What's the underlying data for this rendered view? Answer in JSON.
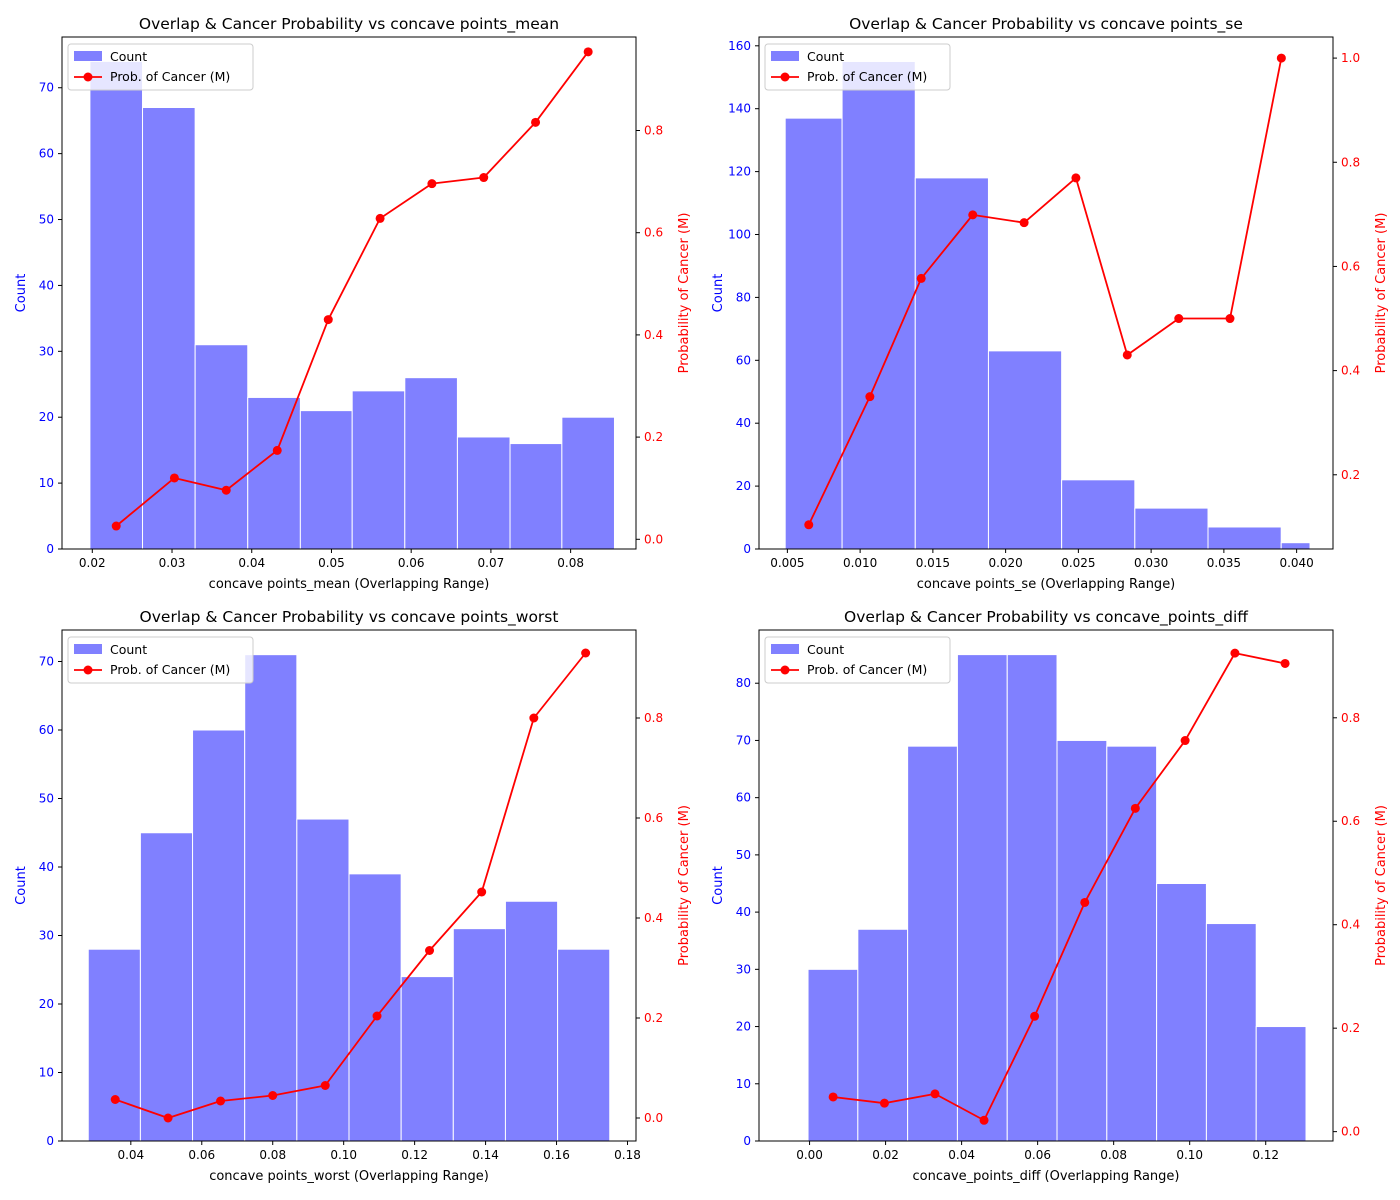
{
  "colors": {
    "bar_fill": "#8080ff",
    "bar_edge": "#ffffff",
    "line": "#ff0000",
    "left_axis_text": "#0000ff",
    "right_axis_text": "#ff0000",
    "axes": "#000000"
  },
  "chart_data": [
    {
      "type": "bar",
      "title": "Overlap & Cancer Probability vs concave points_mean",
      "xlabel": "concave points_mean (Overlapping Range)",
      "ylabel": "Count",
      "y2label": "Probability of Cancer (M)",
      "xlim": [
        0.0162,
        0.0882
      ],
      "ylim": [
        0,
        77.7
      ],
      "y2lim": [
        -0.019,
        0.983
      ],
      "xticks": [
        0.02,
        0.03,
        0.04,
        0.05,
        0.06,
        0.07,
        0.08
      ],
      "xtick_labels": [
        "0.02",
        "0.03",
        "0.04",
        "0.05",
        "0.06",
        "0.07",
        "0.08"
      ],
      "yticks": [
        0,
        10,
        20,
        30,
        40,
        50,
        60,
        70
      ],
      "ytick_labels": [
        "0",
        "10",
        "20",
        "30",
        "40",
        "50",
        "60",
        "70"
      ],
      "y2ticks": [
        0.0,
        0.2,
        0.4,
        0.6,
        0.8
      ],
      "y2tick_labels": [
        "0.0",
        "0.2",
        "0.4",
        "0.6",
        "0.8"
      ],
      "bin_edges": [
        0.0197,
        0.0263,
        0.0329,
        0.0395,
        0.0461,
        0.0526,
        0.0592,
        0.0658,
        0.0724,
        0.0789,
        0.0855
      ],
      "counts": [
        74,
        67,
        31,
        23,
        21,
        24,
        26,
        17,
        16,
        20
      ],
      "prob_x": [
        0.023,
        0.0303,
        0.0368,
        0.0432,
        0.0496,
        0.0561,
        0.0626,
        0.0691,
        0.0756,
        0.0822
      ],
      "prob_values": [
        0.026,
        0.12,
        0.096,
        0.174,
        0.43,
        0.628,
        0.696,
        0.708,
        0.816,
        0.954
      ],
      "legend": {
        "position": "upper-left",
        "entries": [
          "Count",
          "Prob. of Cancer (M)"
        ]
      }
    },
    {
      "type": "bar",
      "title": "Overlap & Cancer Probability vs concave points_se",
      "xlabel": "concave points_se (Overlapping Range)",
      "ylabel": "Count",
      "y2label": "Probability of Cancer (M)",
      "xlim": [
        0.00305,
        0.0425
      ],
      "ylim": [
        0,
        162.8
      ],
      "y2lim": [
        0.0575,
        1.0405
      ],
      "xticks": [
        0.005,
        0.01,
        0.015,
        0.02,
        0.025,
        0.03,
        0.035,
        0.04
      ],
      "xtick_labels": [
        "0.005",
        "0.010",
        "0.015",
        "0.020",
        "0.025",
        "0.030",
        "0.035",
        "0.040"
      ],
      "yticks": [
        0,
        20,
        40,
        60,
        80,
        100,
        120,
        140,
        160
      ],
      "ytick_labels": [
        "0",
        "20",
        "40",
        "60",
        "80",
        "100",
        "120",
        "140",
        "160"
      ],
      "y2ticks": [
        0.2,
        0.4,
        0.6,
        0.8,
        1.0
      ],
      "y2tick_labels": [
        "0.2",
        "0.4",
        "0.6",
        "0.8",
        "1.0"
      ],
      "bin_edges": [
        0.00485,
        0.00876,
        0.01379,
        0.01882,
        0.02385,
        0.02888,
        0.03391,
        0.03894,
        0.04092
      ],
      "counts": [
        137,
        155,
        118,
        63,
        22,
        13,
        7,
        2,
        2
      ],
      "prob_x": [
        0.00647,
        0.01067,
        0.0142,
        0.01774,
        0.02127,
        0.02483,
        0.02836,
        0.0319,
        0.03542,
        0.03895
      ],
      "prob_values": [
        0.104,
        0.35,
        0.577,
        0.699,
        0.684,
        0.77,
        0.43,
        0.5,
        0.5,
        1.0
      ],
      "legend": {
        "position": "upper-left",
        "entries": [
          "Count",
          "Prob. of Cancer (M)"
        ]
      }
    },
    {
      "type": "bar",
      "title": "Overlap & Cancer Probability vs concave points_worst",
      "xlabel": "concave points_worst (Overlapping Range)",
      "ylabel": "Count",
      "y2label": "Probability of Cancer (M)",
      "xlim": [
        0.0206,
        0.1824
      ],
      "ylim": [
        0,
        74.6
      ],
      "y2lim": [
        -0.046,
        0.976
      ],
      "xticks": [
        0.04,
        0.06,
        0.08,
        0.1,
        0.12,
        0.14,
        0.16,
        0.18
      ],
      "xtick_labels": [
        "0.04",
        "0.06",
        "0.08",
        "0.10",
        "0.12",
        "0.14",
        "0.16",
        "0.18"
      ],
      "yticks": [
        0,
        10,
        20,
        30,
        40,
        50,
        60,
        70
      ],
      "ytick_labels": [
        "0",
        "10",
        "20",
        "30",
        "40",
        "50",
        "60",
        "70"
      ],
      "y2ticks": [
        0.0,
        0.2,
        0.4,
        0.6,
        0.8
      ],
      "y2tick_labels": [
        "0.0",
        "0.2",
        "0.4",
        "0.6",
        "0.8"
      ],
      "bin_edges": [
        0.028,
        0.0427,
        0.0574,
        0.0721,
        0.0868,
        0.1015,
        0.1162,
        0.1309,
        0.1456,
        0.1603,
        0.175
      ],
      "counts": [
        28,
        45,
        60,
        71,
        47,
        39,
        24,
        31,
        35,
        28
      ],
      "prob_x": [
        0.0356,
        0.0505,
        0.0653,
        0.08,
        0.0948,
        0.1094,
        0.1242,
        0.1389,
        0.1536,
        0.1682
      ],
      "prob_values": [
        0.037,
        0.0,
        0.034,
        0.045,
        0.065,
        0.204,
        0.335,
        0.452,
        0.8,
        0.93
      ],
      "legend": {
        "position": "upper-left",
        "entries": [
          "Count",
          "Prob. of Cancer (M)"
        ]
      }
    },
    {
      "type": "bar",
      "title": "Overlap & Cancer Probability vs concave_points_diff",
      "xlabel": "concave_points_diff (Overlapping Range)",
      "ylabel": "Count",
      "y2label": "Probability of Cancer (M)",
      "xlim": [
        -0.0133,
        0.1377
      ],
      "ylim": [
        0,
        89.3
      ],
      "y2lim": [
        -0.0181,
        0.9697
      ],
      "xticks": [
        0.0,
        0.02,
        0.04,
        0.06,
        0.08,
        0.1,
        0.12
      ],
      "xtick_labels": [
        "0.00",
        "0.02",
        "0.04",
        "0.06",
        "0.08",
        "0.10",
        "0.12"
      ],
      "yticks": [
        0,
        10,
        20,
        30,
        40,
        50,
        60,
        70,
        80
      ],
      "ytick_labels": [
        "0",
        "10",
        "20",
        "30",
        "40",
        "50",
        "60",
        "70",
        "80"
      ],
      "y2ticks": [
        0.0,
        0.2,
        0.4,
        0.6,
        0.8
      ],
      "y2tick_labels": [
        "0.0",
        "0.2",
        "0.4",
        "0.6",
        "0.8"
      ],
      "bin_edges": [
        -0.0004,
        0.0127,
        0.0258,
        0.0389,
        0.052,
        0.0651,
        0.0782,
        0.0913,
        0.1044,
        0.1175,
        0.1306
      ],
      "counts": [
        30,
        37,
        69,
        85,
        85,
        70,
        69,
        45,
        38,
        20
      ],
      "prob_x": [
        0.0062,
        0.0197,
        0.033,
        0.0459,
        0.0592,
        0.0724,
        0.0857,
        0.0988,
        0.1119,
        0.1251
      ],
      "prob_values": [
        0.067,
        0.055,
        0.073,
        0.022,
        0.223,
        0.443,
        0.625,
        0.756,
        0.925,
        0.905
      ],
      "legend": {
        "position": "upper-left",
        "entries": [
          "Count",
          "Prob. of Cancer (M)"
        ]
      }
    }
  ]
}
